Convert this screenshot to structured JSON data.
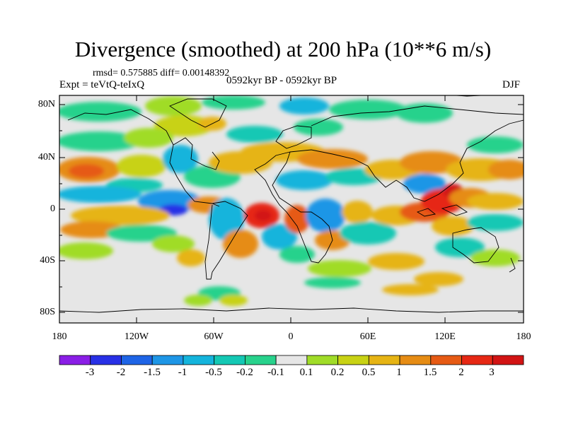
{
  "title": "Divergence (smoothed) at 200 hPa (10**6 m/s)",
  "stats": "rmsd= 0.575885 diff= 0.00148392",
  "experiment": "Expt = teVtQ-teIxQ",
  "period": "0592kyr BP - 0592kyr BP",
  "season": "DJF",
  "lat_labels": [
    "80N",
    "40N",
    "0",
    "40S",
    "80S"
  ],
  "lon_labels": [
    "180",
    "120W",
    "60W",
    "0",
    "60E",
    "120E",
    "180"
  ],
  "colorbar": {
    "labels": [
      "-3",
      "-2",
      "-1.5",
      "-1",
      "-0.5",
      "-0.2",
      "-0.1",
      "0.1",
      "0.2",
      "0.5",
      "1",
      "1.5",
      "2",
      "3"
    ],
    "colors": [
      "#8a1ee6",
      "#2830e6",
      "#1e64e6",
      "#1e96e6",
      "#14b4dc",
      "#14c8b4",
      "#28d28c",
      "#e6e6e6",
      "#a0dc28",
      "#c8d214",
      "#e6b414",
      "#e68c14",
      "#e65a14",
      "#e62814",
      "#d21414"
    ]
  }
}
